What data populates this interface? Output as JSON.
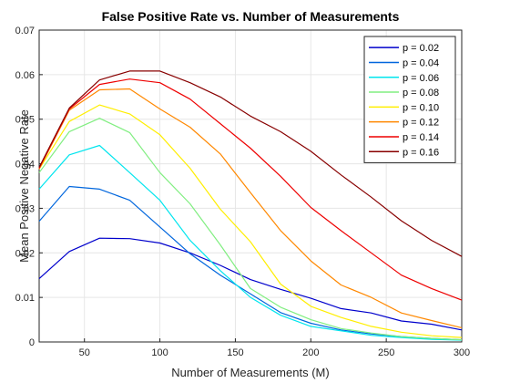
{
  "chart_data": {
    "type": "line",
    "title": "False Positive Rate vs. Number of Measurements",
    "xlabel": "Number of Measurements (M)",
    "ylabel": "Mean Positive Negative Rate",
    "xlim": [
      20,
      300
    ],
    "ylim": [
      0,
      0.07
    ],
    "xticks": [
      "50",
      "100",
      "150",
      "200",
      "250",
      "300"
    ],
    "xtick_values": [
      50,
      100,
      150,
      200,
      250,
      300
    ],
    "yticks": [
      "0",
      "0.01",
      "0.02",
      "0.03",
      "0.04",
      "0.05",
      "0.06",
      "0.07"
    ],
    "ytick_values": [
      0,
      0.01,
      0.02,
      0.03,
      0.04,
      0.05,
      0.06,
      0.07
    ],
    "grid": true,
    "legend_position": "top-right",
    "x": [
      20,
      40,
      60,
      80,
      100,
      120,
      140,
      160,
      180,
      200,
      220,
      240,
      260,
      280,
      300
    ],
    "series": [
      {
        "name": "p = 0.02",
        "color": "#0000cc",
        "values": [
          0.0142,
          0.0203,
          0.0233,
          0.0232,
          0.0222,
          0.02,
          0.0172,
          0.014,
          0.0118,
          0.0098,
          0.0075,
          0.0065,
          0.0047,
          0.004,
          0.0027
        ]
      },
      {
        "name": "p = 0.04",
        "color": "#0066dd",
        "values": [
          0.0271,
          0.0349,
          0.0343,
          0.0318,
          0.0258,
          0.0198,
          0.015,
          0.0108,
          0.0066,
          0.0042,
          0.0027,
          0.0018,
          0.0012,
          0.0008,
          0.0005
        ]
      },
      {
        "name": "p = 0.06",
        "color": "#00e5ee",
        "values": [
          0.0343,
          0.042,
          0.0441,
          0.038,
          0.0318,
          0.0228,
          0.016,
          0.01,
          0.006,
          0.0035,
          0.0025,
          0.0015,
          0.001,
          0.0006,
          0.0004
        ]
      },
      {
        "name": "p = 0.08",
        "color": "#80ee80",
        "values": [
          0.038,
          0.0472,
          0.0502,
          0.047,
          0.038,
          0.031,
          0.0218,
          0.012,
          0.0078,
          0.005,
          0.003,
          0.002,
          0.0012,
          0.0008,
          0.0005
        ]
      },
      {
        "name": "p = 0.10",
        "color": "#ffee00",
        "values": [
          0.0388,
          0.0495,
          0.0532,
          0.0512,
          0.0465,
          0.039,
          0.0298,
          0.0225,
          0.013,
          0.008,
          0.0055,
          0.0035,
          0.0022,
          0.0014,
          0.001
        ]
      },
      {
        "name": "p = 0.12",
        "color": "#ff8800",
        "values": [
          0.0388,
          0.052,
          0.0566,
          0.0568,
          0.0523,
          0.0482,
          0.0422,
          0.0335,
          0.025,
          0.0182,
          0.0128,
          0.01,
          0.0065,
          0.0048,
          0.0032
        ]
      },
      {
        "name": "p = 0.14",
        "color": "#ee0000",
        "values": [
          0.039,
          0.0523,
          0.0578,
          0.059,
          0.0582,
          0.0545,
          0.049,
          0.0435,
          0.0372,
          0.0302,
          0.025,
          0.02,
          0.015,
          0.012,
          0.0094
        ]
      },
      {
        "name": "p = 0.16",
        "color": "#880000",
        "values": [
          0.0392,
          0.0525,
          0.0588,
          0.0608,
          0.0608,
          0.0582,
          0.055,
          0.0507,
          0.0472,
          0.0428,
          0.0375,
          0.0325,
          0.0272,
          0.0228,
          0.0192
        ]
      }
    ]
  }
}
